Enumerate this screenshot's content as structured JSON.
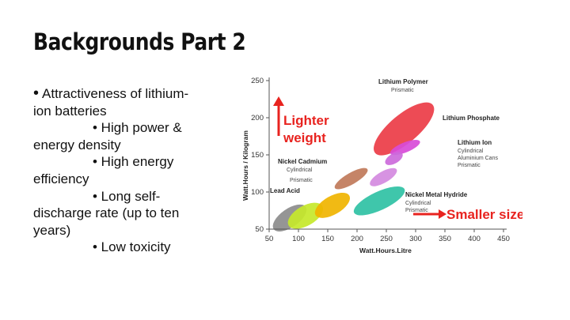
{
  "slide": {
    "title": "Backgrounds Part 2",
    "bullet_symbol": "•",
    "lines": [
      "Attractiveness of lithium-",
      "ion batteries",
      "• High power &",
      "energy density",
      "• High energy",
      "efficiency",
      "• Long self-",
      "discharge rate (up to ten",
      "years)",
      "• Low toxicity"
    ]
  },
  "chart_data": {
    "type": "scatter",
    "xlabel": "Watt.Hours.Litre",
    "ylabel": "Watt.Hours / Kilogram",
    "xticks": [
      50,
      100,
      150,
      200,
      250,
      300,
      350,
      400,
      450
    ],
    "yticks": [
      50,
      100,
      150,
      200,
      250
    ],
    "xlim": [
      50,
      450
    ],
    "ylim": [
      50,
      250
    ],
    "regions": [
      {
        "name": "Lead Acid",
        "sub": "",
        "color": "#8c8c8c",
        "x": 85,
        "y": 65,
        "rx": 28,
        "ry": 13,
        "angle": -35
      },
      {
        "name": "Nickel Cadmium",
        "sub": "Cylindrical",
        "color": "#c6e82a",
        "x": 112,
        "y": 68,
        "rx": 28,
        "ry": 14,
        "angle": -30
      },
      {
        "name": "",
        "sub": "",
        "color": "#f0b400",
        "x": 158,
        "y": 82,
        "rx": 28,
        "ry": 13,
        "angle": -30
      },
      {
        "name": "",
        "sub": "",
        "color": "#c07a5a",
        "x": 190,
        "y": 118,
        "rx": 27,
        "ry": 8,
        "angle": -30
      },
      {
        "name": "Lithium Polymer",
        "sub": "Prismatic",
        "color": "#ec3c46",
        "x": 280,
        "y": 185,
        "rx": 54,
        "ry": 20,
        "angle": -40
      },
      {
        "name": "Lithium Phosphate",
        "sub": "",
        "color": "#d84bd8",
        "x": 282,
        "y": 160,
        "rx": 23,
        "ry": 7,
        "angle": -22
      },
      {
        "name": "Lithium ion",
        "sub": "Cylindrical",
        "color": "#cc6adb",
        "x": 263,
        "y": 145,
        "rx": 14,
        "ry": 7,
        "angle": -30
      },
      {
        "name": "",
        "sub": "Prismatic",
        "color": "#d48ae0",
        "x": 245,
        "y": 120,
        "rx": 22,
        "ry": 8,
        "angle": -30
      },
      {
        "name": "Nickel Metal Hydride",
        "sub": "Cylindrical",
        "color": "#2fc1a4",
        "x": 238,
        "y": 88,
        "rx": 40,
        "ry": 13,
        "angle": -25
      }
    ],
    "annotations": {
      "lighter_weight": "Lighter weight",
      "smaller_size": "Smaller size",
      "labels": {
        "lithium_polymer": "Lithium Polymer",
        "lithium_polymer_sub": "Prismatic",
        "lithium_phosphate": "Lithium Phosphate",
        "lithium_ion": "Lithium Ion",
        "lithium_ion_sub1": "Cylindrical",
        "lithium_ion_sub2": "Aluminium Cans",
        "lithium_ion_sub3": "Prismatic",
        "nickel_cadmium": "Nickel Cadmium",
        "nickel_cadmium_sub1": "Cylindrical",
        "nickel_cadmium_sub2": "Prismatic",
        "lead_acid": "Lead Acid",
        "nimh": "Nickel Metal Hydride",
        "nimh_sub1": "Cylindrical",
        "nimh_sub2": "Prismatic"
      }
    }
  }
}
